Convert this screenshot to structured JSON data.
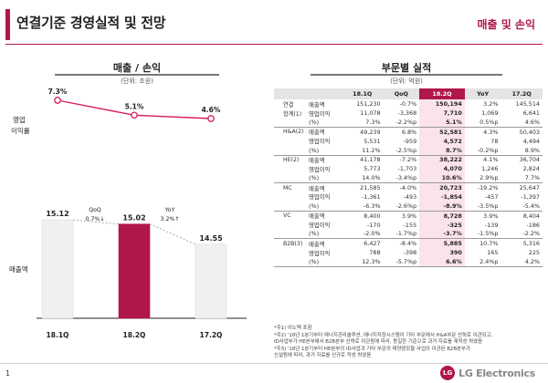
{
  "header": {
    "title": "연결기준 경영실적 및 전망",
    "section_tag": "매출 및 손익"
  },
  "left_panel": {
    "title": "매출 / 손익",
    "unit": "(단위: 조원)",
    "margin_label_line1": "영업",
    "margin_label_line2": "이익률",
    "sales_label": "매출액",
    "qoq_label": "QoQ",
    "qoq_value": "0.7%↓",
    "yoy_label": "YoY",
    "yoy_value": "3.2%↑"
  },
  "chart_data": {
    "type": "bar",
    "categories": [
      "18.1Q",
      "18.2Q",
      "17.2Q"
    ],
    "series": [
      {
        "name": "매출액",
        "values": [
          15.12,
          15.02,
          14.55
        ],
        "highlight_index": 1
      },
      {
        "name": "영업이익률",
        "values": [
          7.3,
          5.1,
          4.6
        ],
        "unit": "%",
        "display": [
          "7.3%",
          "5.1%",
          "4.6%"
        ]
      }
    ],
    "title": "매출 / 손익",
    "ylabel": "매출액",
    "colors": {
      "highlight": "#b0174b",
      "bar": "#f0f0f0",
      "line": "#d61f5a"
    }
  },
  "right_panel": {
    "title": "부문별 실적",
    "unit": "(단위: 억원)",
    "columns": [
      "",
      "",
      "18.1Q",
      "QoQ",
      "18.2Q",
      "YoY",
      "17.2Q"
    ],
    "segments": [
      {
        "name": "연결\n합계(1)",
        "rows": [
          [
            "매출액",
            "151,230",
            "-0.7%",
            "150,194",
            "3.2%",
            "145,514"
          ],
          [
            "영업이익",
            "11,078",
            "-3,368",
            "7,710",
            "1,069",
            "6,641"
          ],
          [
            "(%)",
            "7.3%",
            "-2.2%p",
            "5.1%",
            "0.5%p",
            "4.6%"
          ]
        ]
      },
      {
        "name": "H&A(2)",
        "rows": [
          [
            "매출액",
            "49,239",
            "6.8%",
            "52,581",
            "4.3%",
            "50,403"
          ],
          [
            "영업이익",
            "5,531",
            "-959",
            "4,572",
            "78",
            "4,494"
          ],
          [
            "(%)",
            "11.2%",
            "-2.5%p",
            "8.7%",
            "-0.2%p",
            "8.9%"
          ]
        ]
      },
      {
        "name": "HE(2)",
        "rows": [
          [
            "매출액",
            "41,178",
            "-7.2%",
            "38,222",
            "4.1%",
            "36,704"
          ],
          [
            "영업이익",
            "5,773",
            "-1,703",
            "4,070",
            "1,246",
            "2,824"
          ],
          [
            "(%)",
            "14.0%",
            "-3.4%p",
            "10.6%",
            "2.9%p",
            "7.7%"
          ]
        ]
      },
      {
        "name": "MC",
        "rows": [
          [
            "매출액",
            "21,585",
            "-4.0%",
            "20,723",
            "-19.2%",
            "25,647"
          ],
          [
            "영업이익",
            "-1,361",
            "-493",
            "-1,854",
            "-457",
            "-1,397"
          ],
          [
            "(%)",
            "-6.3%",
            "-2.6%p",
            "-8.9%",
            "-3.5%p",
            "-5.4%"
          ]
        ]
      },
      {
        "name": "VC",
        "rows": [
          [
            "매출액",
            "8,400",
            "3.9%",
            "8,728",
            "3.9%",
            "8,404"
          ],
          [
            "영업이익",
            "-170",
            "-155",
            "-325",
            "-139",
            "-186"
          ],
          [
            "(%)",
            "-2.0%",
            "-1.7%p",
            "-3.7%",
            "-1.5%p",
            "-2.2%"
          ]
        ]
      },
      {
        "name": "B2B(3)",
        "rows": [
          [
            "매출액",
            "6,427",
            "-8.4%",
            "5,885",
            "10.7%",
            "5,316"
          ],
          [
            "영업이익",
            "788",
            "-398",
            "390",
            "165",
            "225"
          ],
          [
            "(%)",
            "12.3%",
            "-5.7%p",
            "6.6%",
            "2.4%p",
            "4.2%"
          ]
        ]
      }
    ],
    "notes": [
      "*주1) 이노텍 포함",
      "*주2) '18년 1분기부터 에너지관리솔루션, 에너지저장시스템이 기타 부문에서 H&A부문 산하로 이관되고,",
      "ID사업부가 HE본부에서 B2B본부 산하로 이관됨에 따라, 동일한 기준으로 과거 자료를 재작성 하였음",
      "*주3) '18년 1분기부터 HE본부의 ID사업과 기타 부문의 태양광모듈 사업이 이관된 B2B본부가",
      "신설됨에 따라, 과거 자료를 신규로 작성 하였음"
    ]
  },
  "footer": {
    "page_number": "1",
    "logo_text": "LG Electronics",
    "logo_mark": "LG"
  }
}
